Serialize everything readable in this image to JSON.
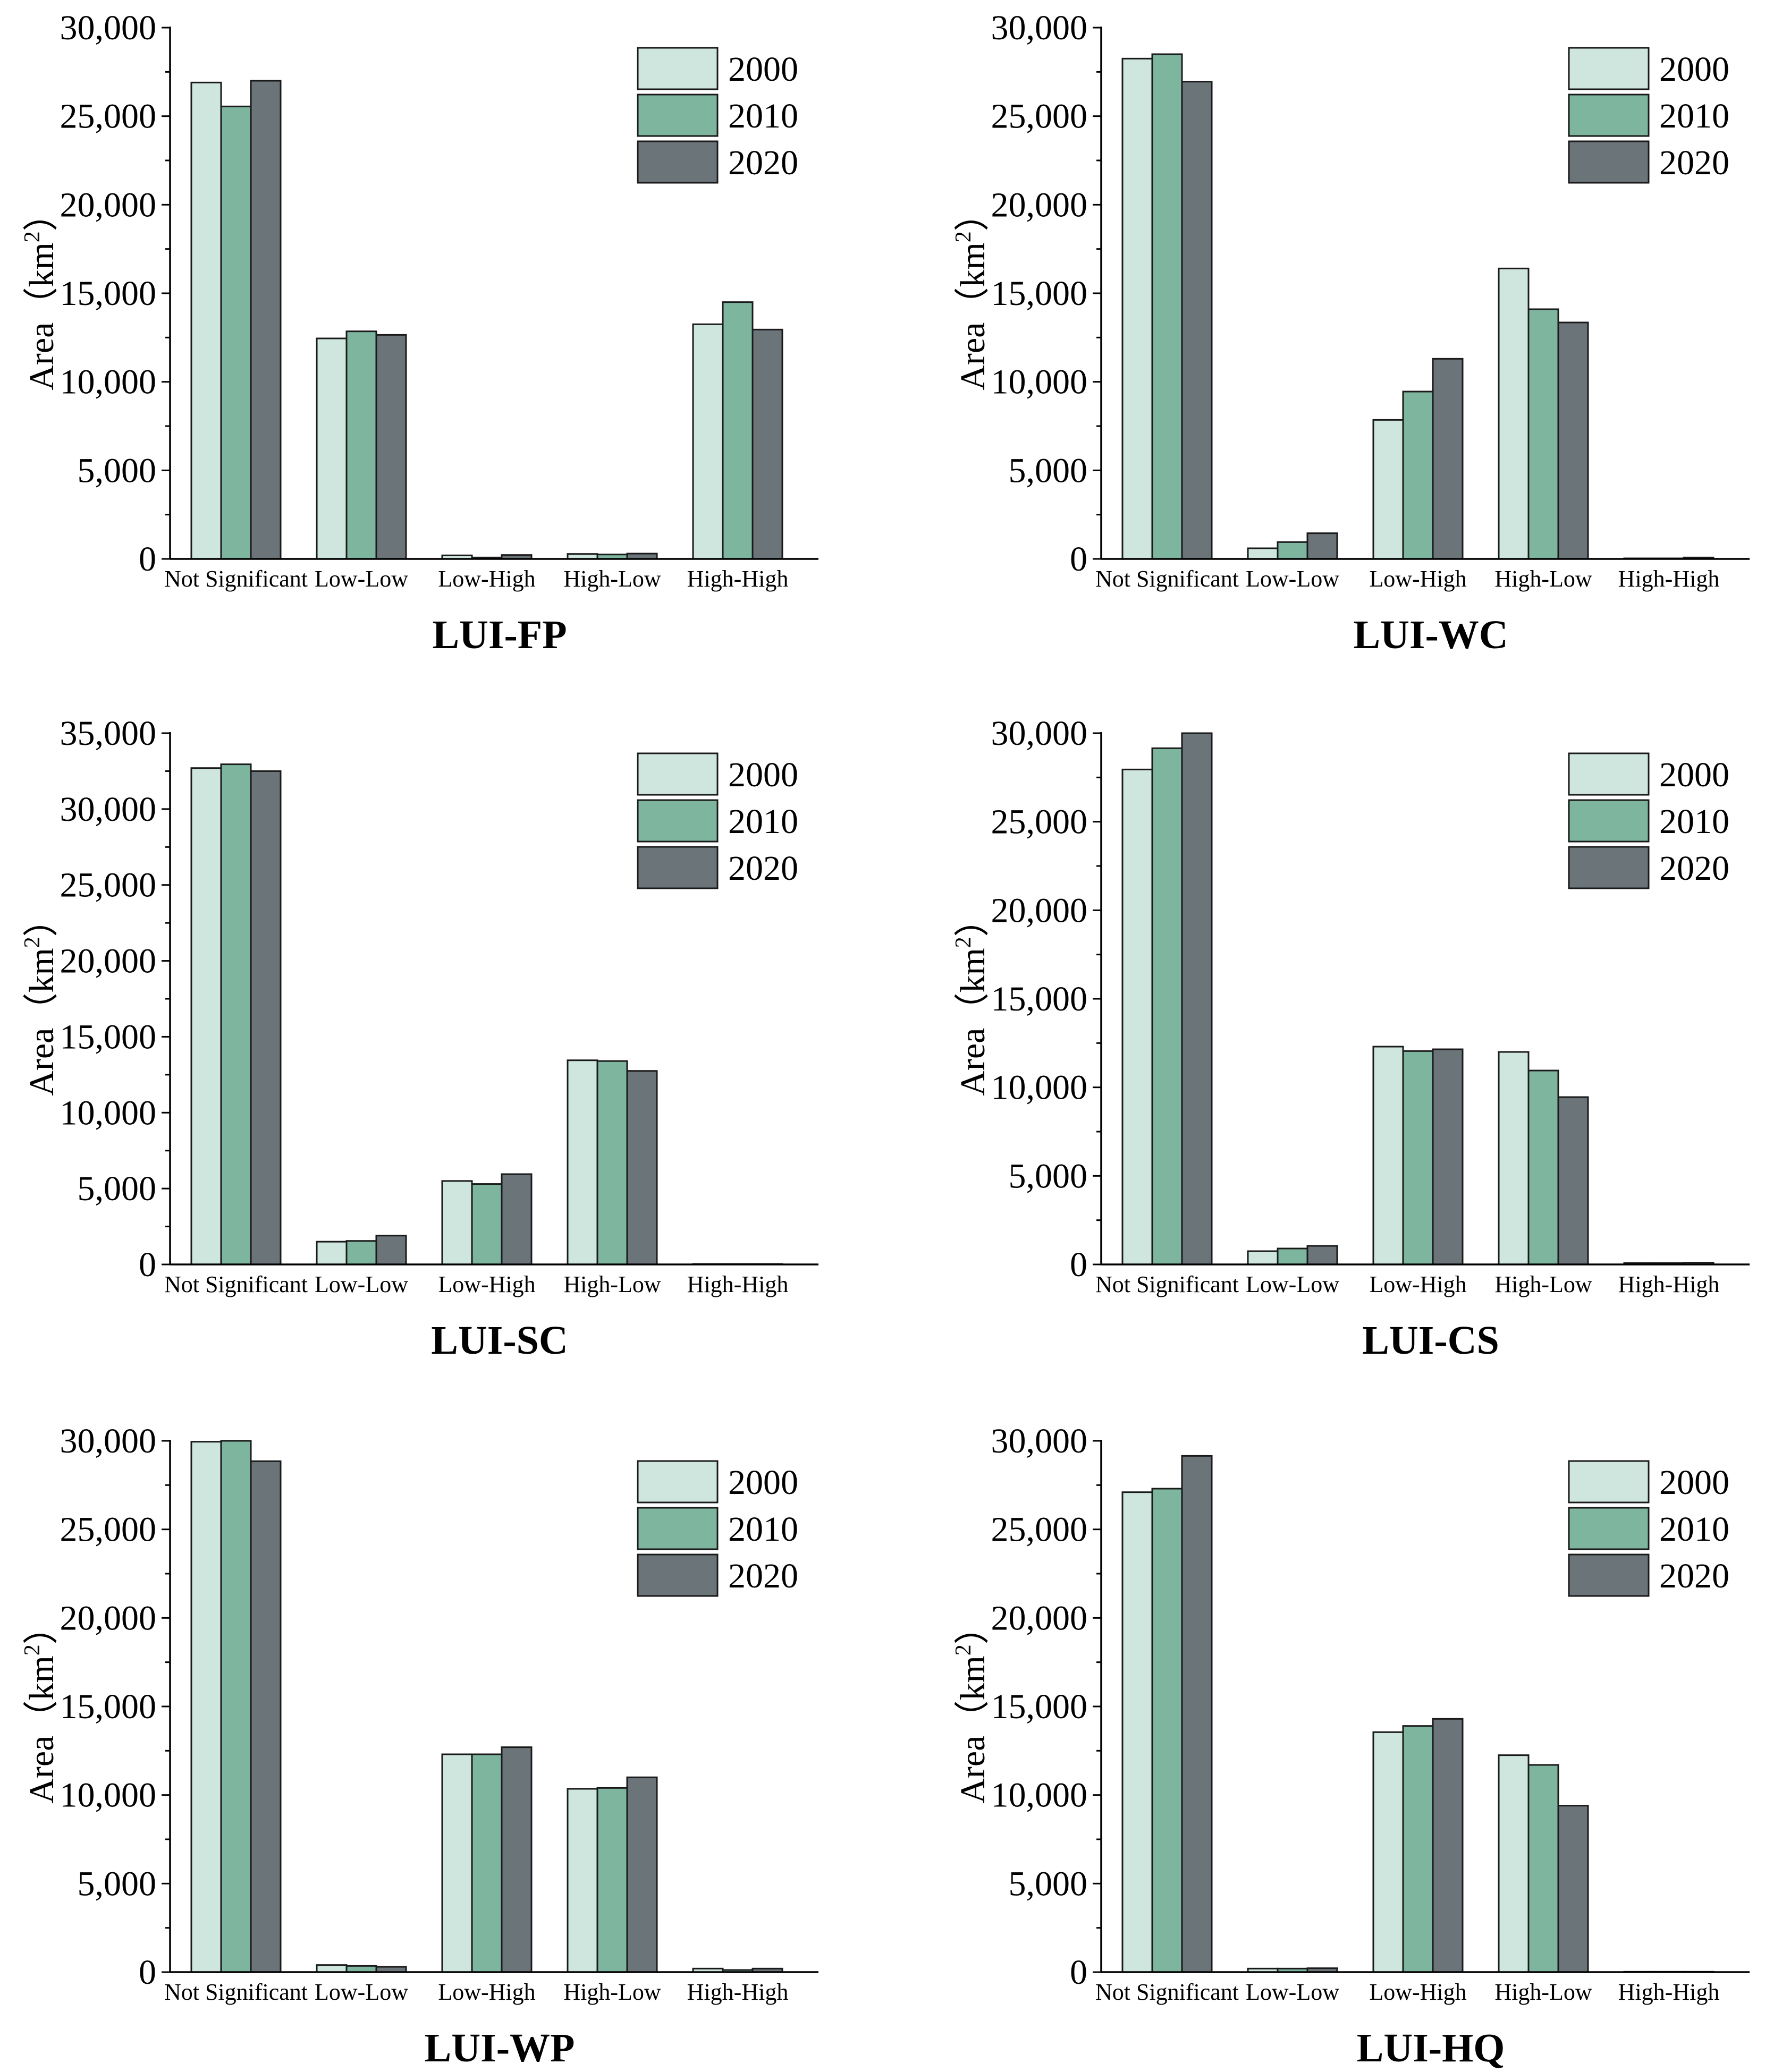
{
  "figure": {
    "ylabel": "Area（km",
    "ylabel_sup": "2",
    "ylabel_close": "）"
  },
  "colors": {
    "2000": "#cfe6df",
    "2010": "#7db59f",
    "2020": "#6b7479",
    "edge": "#1a1a1a"
  },
  "chart_data": [
    {
      "type": "bar",
      "title": "LUI-FP",
      "categories": [
        "Not Significant",
        "Low-Low",
        "Low-High",
        "High-Low",
        "High-High"
      ],
      "series": [
        {
          "name": "2000",
          "values": [
            26900,
            12450,
            200,
            280,
            13250
          ]
        },
        {
          "name": "2010",
          "values": [
            25550,
            12850,
            80,
            250,
            14500
          ]
        },
        {
          "name": "2020",
          "values": [
            27000,
            12650,
            220,
            300,
            12950
          ]
        }
      ],
      "ylim": [
        0,
        30000
      ],
      "yticks": [
        0,
        5000,
        10000,
        15000,
        20000,
        25000,
        30000
      ],
      "ytick_labels": [
        "0",
        "5,000",
        "10,000",
        "15,000",
        "20,000",
        "25,000",
        "30,000"
      ],
      "legend": "top-right"
    },
    {
      "type": "bar",
      "title": "LUI-WC",
      "categories": [
        "Not Significant",
        "Low-Low",
        "Low-High",
        "High-Low",
        "High-High"
      ],
      "series": [
        {
          "name": "2000",
          "values": [
            28250,
            600,
            7850,
            16400,
            30
          ]
        },
        {
          "name": "2010",
          "values": [
            28500,
            950,
            9450,
            14100,
            30
          ]
        },
        {
          "name": "2020",
          "values": [
            26950,
            1450,
            11300,
            13350,
            80
          ]
        }
      ],
      "ylim": [
        0,
        30000
      ],
      "yticks": [
        0,
        5000,
        10000,
        15000,
        20000,
        25000,
        30000
      ],
      "ytick_labels": [
        "0",
        "5,000",
        "10,000",
        "15,000",
        "20,000",
        "25,000",
        "30,000"
      ],
      "legend": "top-right"
    },
    {
      "type": "bar",
      "title": "LUI-SC",
      "categories": [
        "Not Significant",
        "Low-Low",
        "Low-High",
        "High-Low",
        "High-High"
      ],
      "series": [
        {
          "name": "2000",
          "values": [
            32700,
            1500,
            5500,
            13450,
            30
          ]
        },
        {
          "name": "2010",
          "values": [
            32950,
            1550,
            5300,
            13400,
            30
          ]
        },
        {
          "name": "2020",
          "values": [
            32500,
            1900,
            5950,
            12750,
            30
          ]
        }
      ],
      "ylim": [
        0,
        35000
      ],
      "yticks": [
        0,
        5000,
        10000,
        15000,
        20000,
        25000,
        30000,
        35000
      ],
      "ytick_labels": [
        "0",
        "5,000",
        "10,000",
        "15,000",
        "20,000",
        "25,000",
        "30,000",
        "35,000"
      ],
      "legend": "top-right"
    },
    {
      "type": "bar",
      "title": "LUI-CS",
      "categories": [
        "Not Significant",
        "Low-Low",
        "Low-High",
        "High-Low",
        "High-High"
      ],
      "series": [
        {
          "name": "2000",
          "values": [
            27950,
            750,
            12300,
            12000,
            80
          ]
        },
        {
          "name": "2010",
          "values": [
            29150,
            900,
            12050,
            10950,
            80
          ]
        },
        {
          "name": "2020",
          "values": [
            30000,
            1050,
            12150,
            9450,
            100
          ]
        }
      ],
      "ylim": [
        0,
        30000
      ],
      "yticks": [
        0,
        5000,
        10000,
        15000,
        20000,
        25000,
        30000
      ],
      "ytick_labels": [
        "0",
        "5,000",
        "10,000",
        "15,000",
        "20,000",
        "25,000",
        "30,000"
      ],
      "legend": "top-right"
    },
    {
      "type": "bar",
      "title": "LUI-WP",
      "categories": [
        "Not Significant",
        "Low-Low",
        "Low-High",
        "High-Low",
        "High-High"
      ],
      "series": [
        {
          "name": "2000",
          "values": [
            29950,
            400,
            12300,
            10350,
            200
          ]
        },
        {
          "name": "2010",
          "values": [
            30000,
            350,
            12300,
            10400,
            120
          ]
        },
        {
          "name": "2020",
          "values": [
            28850,
            300,
            12700,
            11000,
            200
          ]
        }
      ],
      "ylim": [
        0,
        30000
      ],
      "yticks": [
        0,
        5000,
        10000,
        15000,
        20000,
        25000,
        30000
      ],
      "ytick_labels": [
        "0",
        "5,000",
        "10,000",
        "15,000",
        "20,000",
        "25,000",
        "30,000"
      ],
      "legend": "top-right"
    },
    {
      "type": "bar",
      "title": "LUI-HQ",
      "categories": [
        "Not Significant",
        "Low-Low",
        "Low-High",
        "High-Low",
        "High-High"
      ],
      "series": [
        {
          "name": "2000",
          "values": [
            27100,
            200,
            13550,
            12250,
            20
          ]
        },
        {
          "name": "2010",
          "values": [
            27300,
            200,
            13900,
            11700,
            20
          ]
        },
        {
          "name": "2020",
          "values": [
            29150,
            220,
            14300,
            9400,
            20
          ]
        }
      ],
      "ylim": [
        0,
        30000
      ],
      "yticks": [
        0,
        5000,
        10000,
        15000,
        20000,
        25000,
        30000
      ],
      "ytick_labels": [
        "0",
        "5,000",
        "10,000",
        "15,000",
        "20,000",
        "25,000",
        "30,000"
      ],
      "legend": "top-right"
    }
  ]
}
